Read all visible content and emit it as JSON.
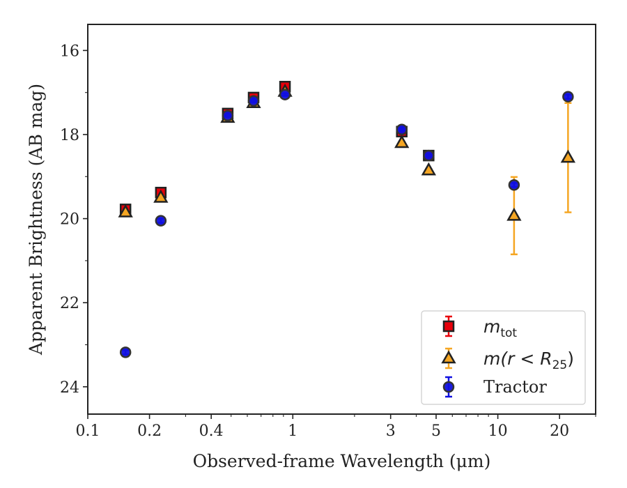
{
  "chart_data": {
    "type": "scatter",
    "title": "",
    "xlabel": "Observed-frame Wavelength (μm)",
    "ylabel": "Apparent Brightness (AB mag)",
    "x_scale": "log",
    "xlim": [
      0.1,
      30
    ],
    "ylim": [
      24.65,
      15.38
    ],
    "y_inverted": true,
    "grid": false,
    "legend_position": "lower-right",
    "x_major_ticks": [
      {
        "value": 0.1,
        "label": "0.1"
      },
      {
        "value": 0.2,
        "label": "0.2"
      },
      {
        "value": 0.4,
        "label": "0.4"
      },
      {
        "value": 1,
        "label": "1"
      },
      {
        "value": 3,
        "label": "3"
      },
      {
        "value": 5,
        "label": "5"
      },
      {
        "value": 10,
        "label": "10"
      },
      {
        "value": 20,
        "label": "20"
      }
    ],
    "x_minor_ticks": [
      0.3,
      0.5,
      0.6,
      0.7,
      0.8,
      0.9,
      2,
      4,
      6,
      7,
      8,
      9,
      30
    ],
    "y_major_ticks": [
      {
        "value": 16,
        "label": "16"
      },
      {
        "value": 18,
        "label": "18"
      },
      {
        "value": 20,
        "label": "20"
      },
      {
        "value": 22,
        "label": "22"
      },
      {
        "value": 24,
        "label": "24"
      }
    ],
    "y_minor_ticks": [
      17,
      19,
      21,
      23
    ],
    "series": [
      {
        "name": "m_tot",
        "legend_math": "m",
        "legend_subscript": "tot",
        "marker": "square",
        "color": "#e8000b",
        "edge_color": "#222222",
        "points": [
          {
            "x": 0.1528,
            "y": 19.78,
            "err": 0.06
          },
          {
            "x": 0.2271,
            "y": 19.38,
            "err": 0.06
          },
          {
            "x": 0.4815,
            "y": 17.5,
            "err": 0.04
          },
          {
            "x": 0.6437,
            "y": 17.12,
            "err": 0.04
          },
          {
            "x": 0.9161,
            "y": 16.86,
            "err": 0.04
          },
          {
            "x": 3.4,
            "y": 17.93,
            "err": 0.04
          },
          {
            "x": 4.6,
            "y": 18.5,
            "err": 0.04
          }
        ]
      },
      {
        "name": "m(r < R25)",
        "legend_math": "m(r < R",
        "legend_subscript": "25",
        "legend_suffix": ")",
        "marker": "triangle",
        "color": "#f5a623",
        "edge_color": "#222222",
        "points": [
          {
            "x": 0.1528,
            "y": 19.85,
            "err": 0.04
          },
          {
            "x": 0.2271,
            "y": 19.5,
            "err": 0.04
          },
          {
            "x": 0.4815,
            "y": 17.6,
            "err": 0.03
          },
          {
            "x": 0.6437,
            "y": 17.25,
            "err": 0.03
          },
          {
            "x": 0.9161,
            "y": 16.98,
            "err": 0.03
          },
          {
            "x": 3.4,
            "y": 18.2,
            "err": 0.03
          },
          {
            "x": 4.6,
            "y": 18.85,
            "err": 0.03
          },
          {
            "x": 12,
            "y": 19.93,
            "err": 0.92
          },
          {
            "x": 22,
            "y": 18.55,
            "err": 1.3
          }
        ]
      },
      {
        "name": "Tractor",
        "marker": "circle",
        "color": "#1010e0",
        "edge_color": "#333333",
        "points": [
          {
            "x": 0.1528,
            "y": 23.18,
            "err": 0.05
          },
          {
            "x": 0.2271,
            "y": 20.05,
            "err": 0.05
          },
          {
            "x": 0.4815,
            "y": 17.55,
            "err": 0.03
          },
          {
            "x": 0.6437,
            "y": 17.2,
            "err": 0.03
          },
          {
            "x": 0.9161,
            "y": 17.05,
            "err": 0.03
          },
          {
            "x": 3.4,
            "y": 17.88,
            "err": 0.03
          },
          {
            "x": 4.6,
            "y": 18.5,
            "err": 0.03
          },
          {
            "x": 12,
            "y": 19.2,
            "err": 0.05
          },
          {
            "x": 22,
            "y": 17.1,
            "err": 0.05
          }
        ]
      }
    ]
  }
}
